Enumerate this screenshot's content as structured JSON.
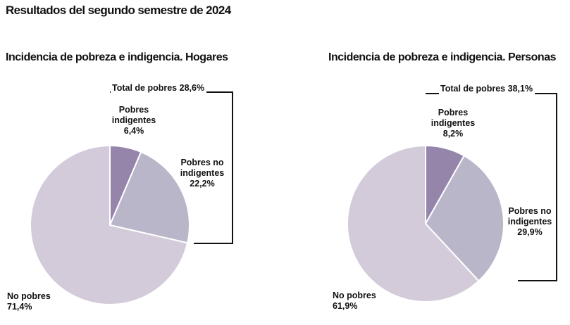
{
  "page": {
    "title": "Resultados del segundo semestre de 2024"
  },
  "chart_data": [
    {
      "type": "pie",
      "title": "Incidencia de pobreza e indigencia. Hogares",
      "total_label": "Total de pobres 28,6%",
      "slices": [
        {
          "label_lines": [
            "Pobres",
            "indigentes"
          ],
          "value": 6.4,
          "value_label": "6,4%",
          "color": "#9585ab"
        },
        {
          "label_lines": [
            "Pobres no",
            "indigentes"
          ],
          "value": 22.2,
          "value_label": "22,2%",
          "color": "#bab6ca"
        },
        {
          "label_lines": [
            "No pobres"
          ],
          "value": 71.4,
          "value_label": "71,4%",
          "color": "#d3cbd9"
        }
      ]
    },
    {
      "type": "pie",
      "title": "Incidencia de pobreza e indigencia. Personas",
      "total_label": "Total de pobres 38,1%",
      "slices": [
        {
          "label_lines": [
            "Pobres",
            "indigentes"
          ],
          "value": 8.2,
          "value_label": "8,2%",
          "color": "#9585ab"
        },
        {
          "label_lines": [
            "Pobres no",
            "indigentes"
          ],
          "value": 29.9,
          "value_label": "29,9%",
          "color": "#bab6ca"
        },
        {
          "label_lines": [
            "No pobres"
          ],
          "value": 61.9,
          "value_label": "61,9%",
          "color": "#d3cbd9"
        }
      ]
    }
  ]
}
